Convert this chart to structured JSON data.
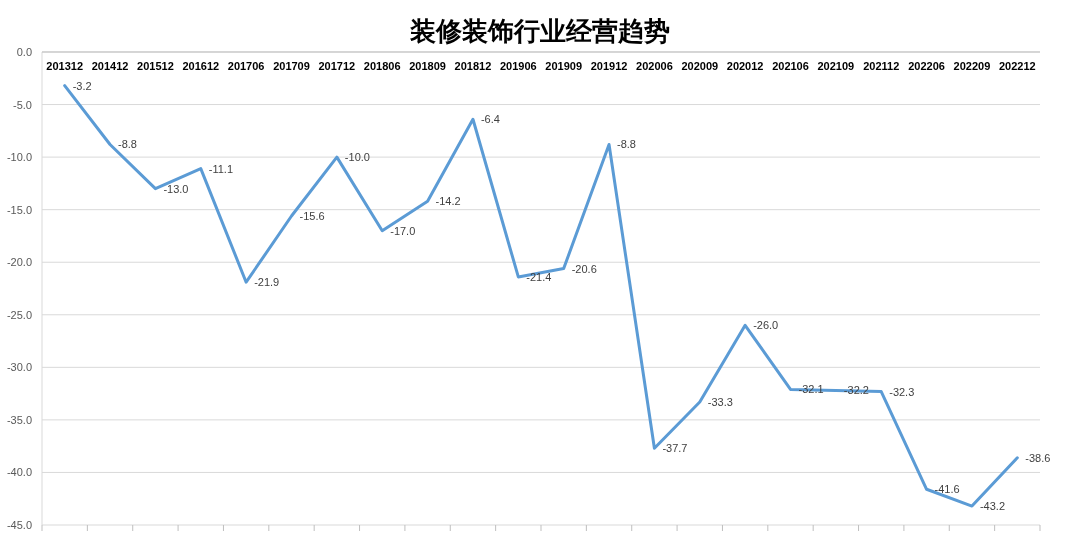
{
  "chart_data": {
    "type": "line",
    "title": "装修装饰行业经营趋势",
    "categories": [
      "201312",
      "201412",
      "201512",
      "201612",
      "201706",
      "201709",
      "201712",
      "201806",
      "201809",
      "201812",
      "201906",
      "201909",
      "201912",
      "202006",
      "202009",
      "202012",
      "202106",
      "202109",
      "202112",
      "202206",
      "202209",
      "202212"
    ],
    "series": [
      {
        "color": "#5b9bd5",
        "values": [
          -3.2,
          -8.8,
          -13.0,
          -11.1,
          -21.9,
          -15.6,
          -10.0,
          -17.0,
          -14.2,
          -6.4,
          -21.4,
          -20.6,
          -8.8,
          -37.7,
          -33.3,
          -26.0,
          -32.1,
          -32.2,
          -32.3,
          -41.6,
          -43.2,
          -38.6
        ],
        "value_labels": [
          "-3.2",
          "-8.8",
          "-13.0",
          "-11.1",
          "-21.9",
          "-15.6",
          "-10.0",
          "-17.0",
          "-14.2",
          "-6.4",
          "-21.4",
          "-20.6",
          "-8.8",
          "-37.7",
          "-33.3",
          "-26.0",
          "-32.1",
          "-32.2",
          "-32.3",
          "-41.6",
          "-43.2",
          "-38.6"
        ]
      }
    ],
    "ylim": [
      -45,
      0
    ],
    "yticks": [
      {
        "value": 0,
        "label": "0.0"
      },
      {
        "value": -5,
        "label": "-5.0"
      },
      {
        "value": -10,
        "label": "-10.0"
      },
      {
        "value": -15,
        "label": "-15.0"
      },
      {
        "value": -20,
        "label": "-20.0"
      },
      {
        "value": -25,
        "label": "-25.0"
      },
      {
        "value": -30,
        "label": "-30.0"
      },
      {
        "value": -35,
        "label": "-35.0"
      },
      {
        "value": -40,
        "label": "-40.0"
      },
      {
        "value": -45,
        "label": "-45.0"
      }
    ],
    "grid": "y",
    "marker": "none",
    "line_style": "solid"
  }
}
